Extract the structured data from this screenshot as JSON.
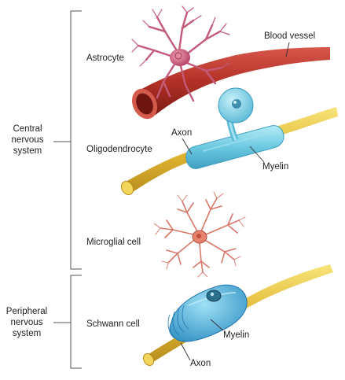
{
  "groups": {
    "central": [
      "Central",
      "nervous",
      "system"
    ],
    "peripheral": [
      "Peripheral",
      "nervous",
      "system"
    ]
  },
  "labels": {
    "astrocyte": "Astrocyte",
    "blood_vessel": "Blood vessel",
    "axon_top": "Axon",
    "oligodendrocyte": "Oligodendrocyte",
    "myelin_top": "Myelin",
    "microglial": "Microglial cell",
    "schwann": "Schwann cell",
    "myelin_bottom": "Myelin",
    "axon_bottom": "Axon"
  },
  "colors": {
    "vessel": "#b8352c",
    "astrocyte": "#c25a78",
    "axon": "#e8c23c",
    "myelin": "#72cfe4",
    "microglia": "#d9786a",
    "schwann": "#4fb4de"
  }
}
